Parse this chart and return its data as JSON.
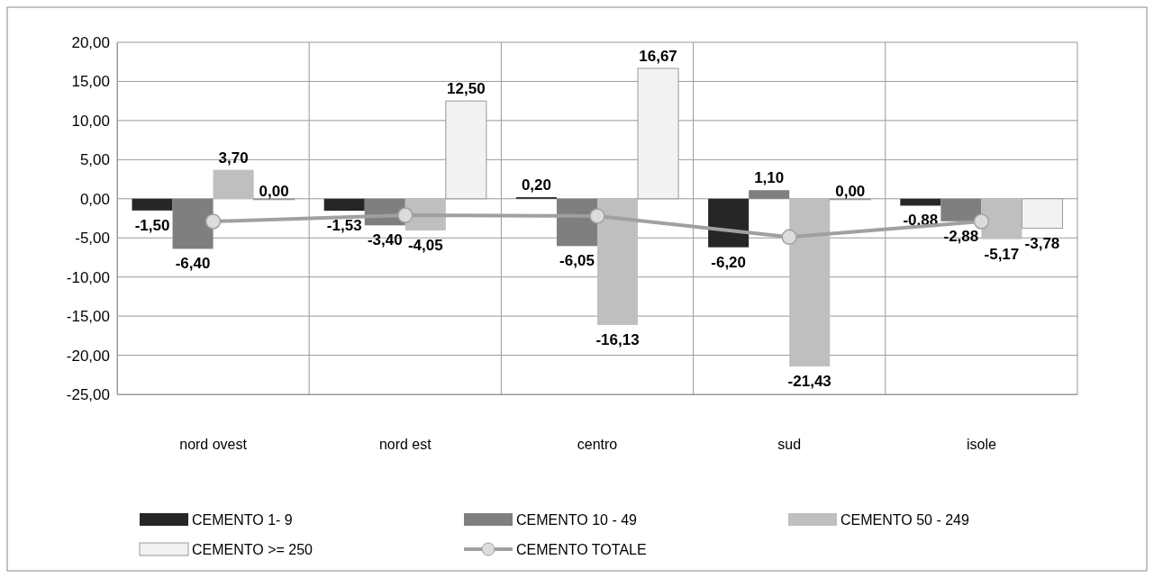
{
  "chart_data": {
    "type": "bar",
    "categories": [
      "nord ovest",
      "nord est",
      "centro",
      "sud",
      "isole"
    ],
    "series": [
      {
        "name": "CEMENTO 1- 9",
        "color": "#262626",
        "values": [
          -1.5,
          -1.53,
          0.2,
          -6.2,
          -0.88
        ],
        "value_labels": [
          "-1,50",
          "-1,53",
          "0,20",
          "-6,20",
          "-0,88"
        ]
      },
      {
        "name": "CEMENTO 10 - 49",
        "color": "#7f7f7f",
        "values": [
          -6.4,
          -3.4,
          -6.05,
          1.1,
          -2.88
        ],
        "value_labels": [
          "-6,40",
          "-3,40",
          "-6,05",
          "1,10",
          "-2,88"
        ]
      },
      {
        "name": "CEMENTO 50 - 249",
        "color": "#bfbfbf",
        "values": [
          3.7,
          -4.05,
          -16.13,
          -21.43,
          -5.17
        ],
        "value_labels": [
          "3,70",
          "-4,05",
          "-16,13",
          "-21,43",
          "-5,17"
        ]
      },
      {
        "name": "CEMENTO >= 250",
        "color": "#f2f2f2",
        "values": [
          0,
          12.5,
          16.67,
          0,
          -3.78
        ],
        "value_labels": [
          "0,00",
          "12,50",
          "16,67",
          "0,00",
          "-3,78"
        ]
      },
      {
        "name": "CEMENTO TOTALE",
        "type": "line",
        "color": "#a0a0a0",
        "marker": "circle",
        "values": [
          -2.9,
          -2.1,
          -2.2,
          -4.9,
          -2.9
        ]
      }
    ],
    "ylim": [
      -25,
      20
    ],
    "yticks": [
      {
        "value": -25,
        "label": "-25,00"
      },
      {
        "value": -20,
        "label": "-20,00"
      },
      {
        "value": -15,
        "label": "-15,00"
      },
      {
        "value": -10,
        "label": "-10,00"
      },
      {
        "value": -5,
        "label": "-5,00"
      },
      {
        "value": 0,
        "label": "0,00"
      },
      {
        "value": 5,
        "label": "5,00"
      },
      {
        "value": 10,
        "label": "10,00"
      },
      {
        "value": 15,
        "label": "15,00"
      },
      {
        "value": 20,
        "label": "20,00"
      }
    ],
    "grid": true,
    "legend": "bottom"
  }
}
